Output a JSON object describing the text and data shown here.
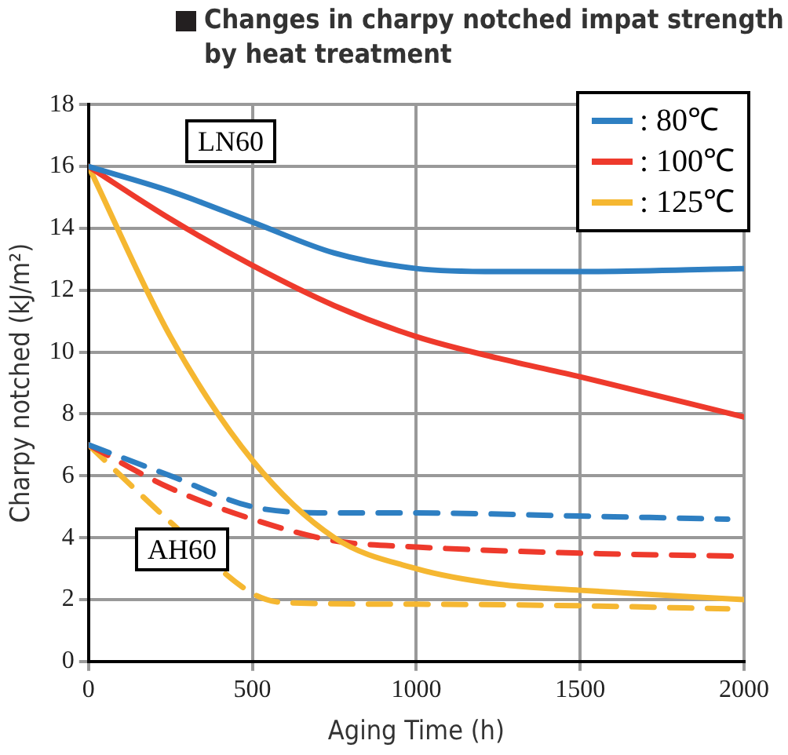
{
  "chart_data": {
    "type": "line",
    "title": "Changes in charpy notched impat strength by heat treatment",
    "xlabel": "Aging Time (h)",
    "ylabel": "Charpy notched (kJ/m²)",
    "annotations": [
      "LN60",
      "AH60"
    ],
    "xlim": [
      0,
      2000
    ],
    "xticks": [
      0,
      500,
      1000,
      1500,
      2000
    ],
    "ylim": [
      0,
      18
    ],
    "yticks": [
      0,
      2,
      4,
      6,
      8,
      10,
      12,
      14,
      16,
      18
    ],
    "grid": true,
    "legend": "top right",
    "marker": "none",
    "series": [
      {
        "name": ": 80℃",
        "color": "#2e7fc2",
        "line_style": "solid",
        "x": [
          0,
          250,
          500,
          750,
          1000,
          1250,
          1500,
          2000
        ],
        "values": [
          16,
          15.2,
          14.2,
          13.2,
          12.7,
          12.6,
          12.6,
          12.7
        ]
      },
      {
        "name": ": 100℃",
        "color": "#ee3a2c",
        "line_style": "solid",
        "x": [
          0,
          250,
          500,
          750,
          1000,
          1250,
          1500,
          2000
        ],
        "values": [
          16,
          14.3,
          12.8,
          11.5,
          10.5,
          9.8,
          9.2,
          7.9
        ]
      },
      {
        "name": ": 125℃",
        "color": "#f5b731",
        "line_style": "solid",
        "x": [
          0,
          250,
          500,
          750,
          1000,
          1250,
          1500,
          2000
        ],
        "values": [
          16,
          10.5,
          6.5,
          4,
          3,
          2.5,
          2.3,
          2
        ]
      },
      {
        "color": "#2e7fc2",
        "line_style": "dashed",
        "x": [
          0,
          250,
          500,
          750,
          1000,
          1500,
          1950
        ],
        "values": [
          7,
          6,
          5,
          4.8,
          4.8,
          4.7,
          4.6
        ]
      },
      {
        "color": "#ee3a2c",
        "line_style": "dashed",
        "x": [
          0,
          250,
          500,
          750,
          1000,
          1500,
          2000
        ],
        "values": [
          7,
          5.6,
          4.6,
          3.9,
          3.7,
          3.5,
          3.4
        ]
      },
      {
        "color": "#f5b731",
        "line_style": "dashed",
        "x": [
          0,
          250,
          500,
          600,
          1000,
          1500,
          1950
        ],
        "values": [
          7,
          4.5,
          2.2,
          1.9,
          1.85,
          1.8,
          1.7
        ]
      }
    ]
  }
}
